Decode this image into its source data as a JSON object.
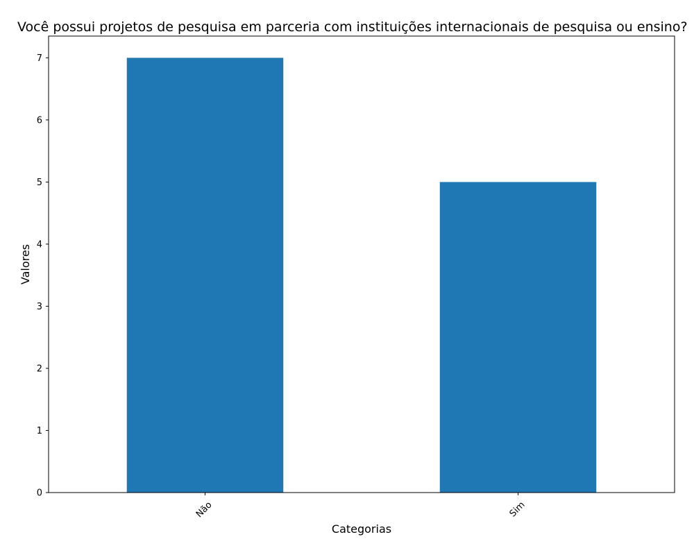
{
  "chart_data": {
    "type": "bar",
    "title": "Você possui projetos de pesquisa em parceria com instituições internacionais de pesquisa ou ensino?",
    "xlabel": "Categorias",
    "ylabel": "Valores",
    "categories": [
      "Não",
      "Sim"
    ],
    "values": [
      7,
      5
    ],
    "ylim": [
      0,
      7.35
    ],
    "yticks": [
      0,
      1,
      2,
      3,
      4,
      5,
      6,
      7
    ],
    "bar_color": "#1f77b4",
    "grid": false,
    "legend": "none"
  }
}
